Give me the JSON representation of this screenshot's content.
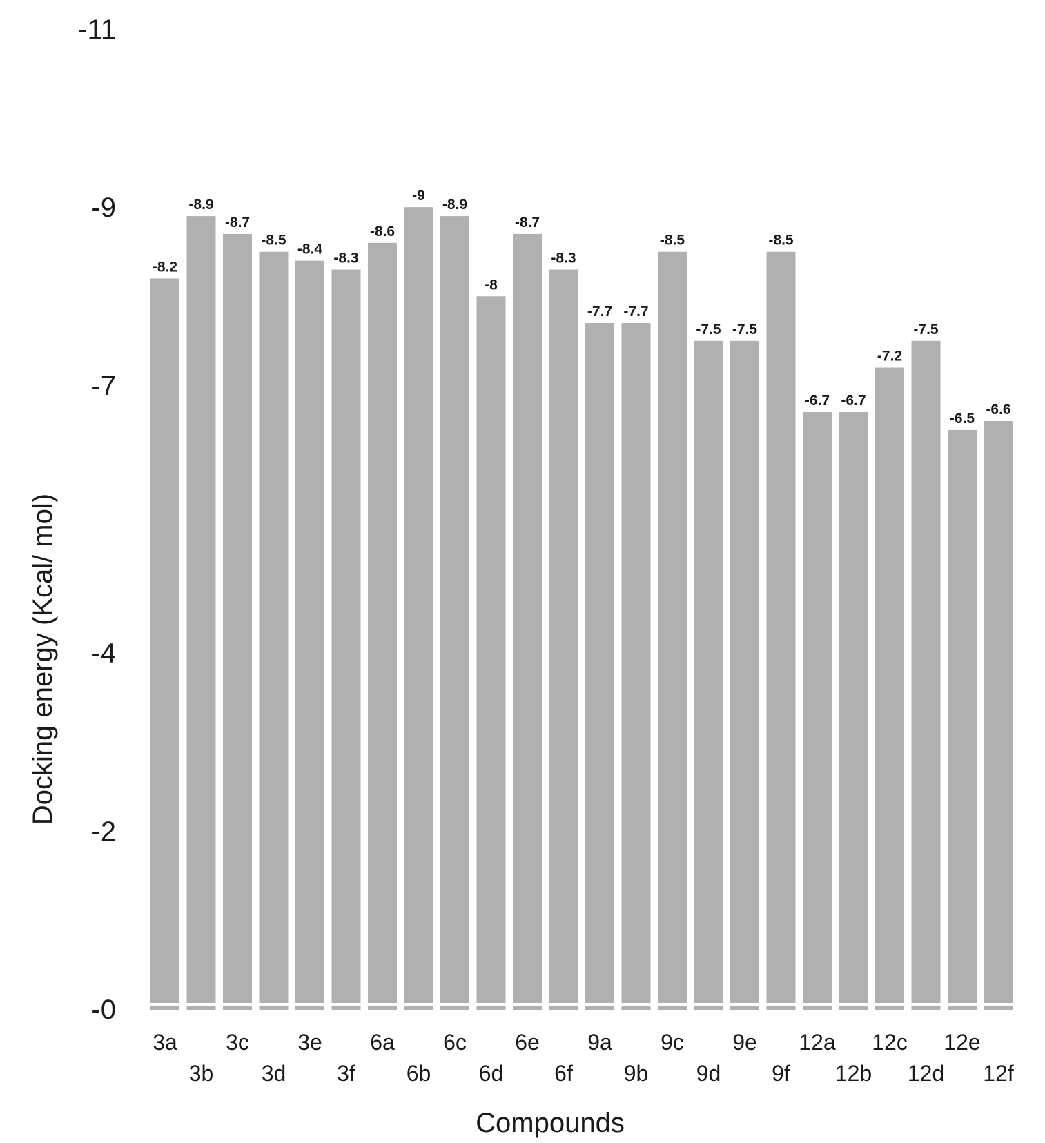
{
  "chart_data": {
    "type": "bar",
    "title": "",
    "xlabel": "Compounds",
    "ylabel": "Docking energy (Kcal/ mol)",
    "y_axis": "energy magnitude plotted upward; tick labels printed as negative values",
    "ylim": [
      0,
      11
    ],
    "yticks": [
      {
        "value": 0,
        "label": "-0"
      },
      {
        "value": 2,
        "label": "-2"
      },
      {
        "value": 4,
        "label": "-4"
      },
      {
        "value": 7,
        "label": "-7"
      },
      {
        "value": 9,
        "label": "-9"
      },
      {
        "value": 11,
        "label": "-11"
      }
    ],
    "categories": [
      "3a",
      "3b",
      "3c",
      "3d",
      "3e",
      "3f",
      "6a",
      "6b",
      "6c",
      "6d",
      "6e",
      "6f",
      "9a",
      "9b",
      "9c",
      "9d",
      "9e",
      "9f",
      "12a",
      "12b",
      "12c",
      "12d",
      "12e",
      "12f"
    ],
    "values": [
      -8.2,
      -8.9,
      -8.7,
      -8.5,
      -8.4,
      -8.3,
      -8.6,
      -9,
      -8.9,
      -8,
      -8.7,
      -8.3,
      -7.7,
      -7.7,
      -8.5,
      -7.5,
      -7.5,
      -8.5,
      -6.7,
      -6.7,
      -7.2,
      -7.5,
      -6.5,
      -6.6
    ],
    "data_labels": [
      "-8.2",
      "-8.9",
      "-8.7",
      "-8.5",
      "-8.4",
      "-8.3",
      "-8.6",
      "-9",
      "-8.9",
      "-8",
      "-8.7",
      "-8.3",
      "-7.7",
      "-7.7",
      "-8.5",
      "-7.5",
      "-7.5",
      "-8.5",
      "-6.7",
      "-6.7",
      "-7.2",
      "-7.5",
      "-6.5",
      "-6.6"
    ],
    "bar_color": "#b0b0b0",
    "grid": false,
    "legend": "none"
  }
}
